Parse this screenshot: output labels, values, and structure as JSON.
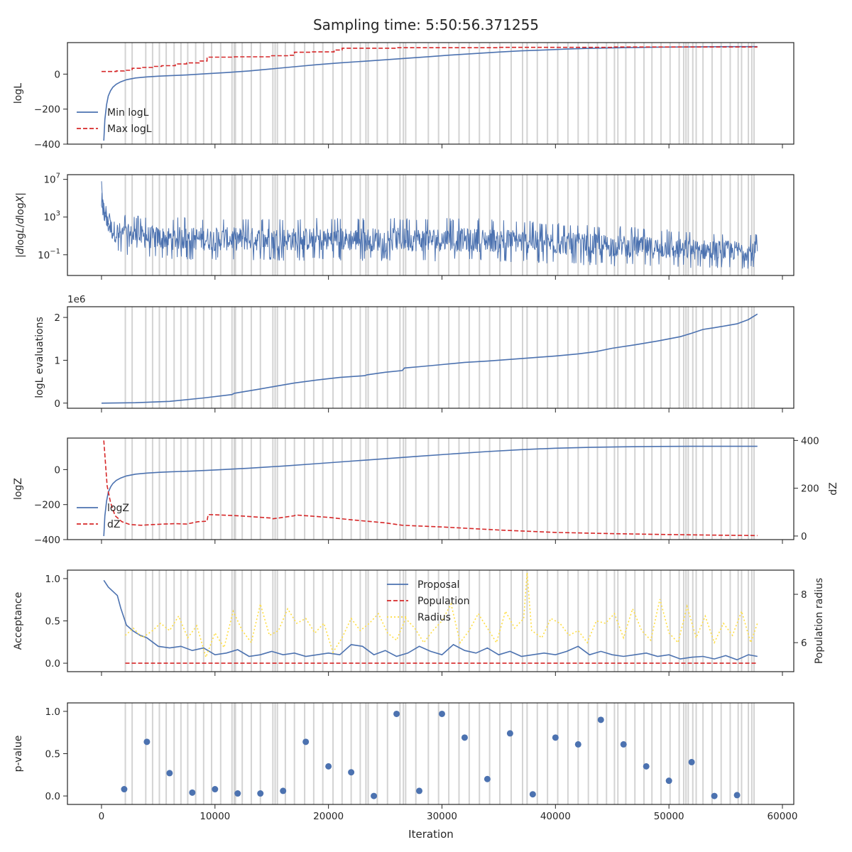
{
  "figure": {
    "title": "Sampling time: 5:50:56.371255",
    "xlabel": "Iteration",
    "xlim": [
      -3000,
      61000
    ],
    "xticks": [
      0,
      10000,
      20000,
      30000,
      40000,
      50000,
      60000
    ],
    "colors": {
      "blue": "#4c72b0",
      "red": "#d62728",
      "yellow": "#ffdd40",
      "grey": "#d3d3d3",
      "axis": "#262626"
    }
  },
  "insertion_iterations": [
    2100,
    2700,
    3900,
    4500,
    5100,
    5700,
    6400,
    7000,
    7600,
    8300,
    9000,
    9700,
    10500,
    11500,
    11700,
    11800,
    12400,
    13200,
    14000,
    15100,
    15300,
    15500,
    16200,
    17000,
    17900,
    18700,
    19500,
    20400,
    21200,
    22000,
    22800,
    23300,
    23500,
    24300,
    25200,
    26300,
    26600,
    26800,
    27700,
    28800,
    29700,
    30600,
    31500,
    32400,
    33300,
    34200,
    35100,
    36100,
    37100,
    37500,
    38400,
    39300,
    40200,
    41100,
    42000,
    42900,
    43700,
    44500,
    45200,
    45500,
    46200,
    47000,
    47800,
    48500,
    49300,
    50100,
    50900,
    51300,
    51500,
    51700,
    52100,
    52400,
    53000,
    53800,
    54600,
    55400,
    56100,
    56400,
    57000,
    57300,
    57500
  ],
  "chart_data": [
    {
      "type": "line",
      "ylabel": "logL",
      "ylim": [
        -400,
        180
      ],
      "yticks": [
        -400,
        -200,
        0
      ],
      "legend": "lower-left",
      "series": [
        {
          "name": "Min logL",
          "style": "solid",
          "color": "#4c72b0",
          "x": [
            200,
            300,
            450,
            600,
            800,
            1000,
            1300,
            1700,
            2200,
            3000,
            4000,
            5000,
            6000,
            7500,
            9000,
            11000,
            13000,
            15000,
            17000,
            19000,
            21000,
            23000,
            25000,
            27000,
            29000,
            31000,
            33000,
            35000,
            37000,
            39000,
            41000,
            43000,
            45000,
            47000,
            49000,
            51000,
            53000,
            55000,
            57000,
            57800
          ],
          "y": [
            -380,
            -260,
            -175,
            -125,
            -95,
            -75,
            -58,
            -44,
            -32,
            -22,
            -16,
            -12,
            -9,
            -5,
            1,
            9,
            18,
            30,
            42,
            54,
            64,
            73,
            82,
            91,
            100,
            110,
            118,
            126,
            133,
            138,
            143,
            147,
            150,
            152,
            154,
            155,
            156,
            157,
            157,
            157
          ]
        },
        {
          "name": "Max logL",
          "style": "dashed",
          "color": "#d62728",
          "x": [
            0,
            1300,
            1300,
            2000,
            2000,
            2700,
            2700,
            3500,
            3500,
            4500,
            4500,
            5300,
            5300,
            6500,
            6500,
            7500,
            7500,
            8600,
            8600,
            9300,
            9300,
            11700,
            11700,
            14800,
            14800,
            16500,
            16500,
            17000,
            17000,
            18500,
            18500,
            20500,
            20500,
            21200,
            21200,
            26000,
            26000,
            35000,
            35000,
            45000,
            45000,
            57800
          ],
          "y": [
            15,
            15,
            18,
            18,
            22,
            22,
            33,
            33,
            38,
            38,
            44,
            44,
            48,
            48,
            58,
            58,
            64,
            64,
            75,
            75,
            97,
            97,
            99,
            99,
            105,
            105,
            108,
            108,
            125,
            125,
            127,
            127,
            138,
            138,
            148,
            148,
            151,
            151,
            153,
            153,
            155,
            155
          ]
        }
      ]
    },
    {
      "type": "line",
      "ylabel": "|dlogL/dlogX|",
      "scale": "log",
      "ylim_log10": [
        -3.2,
        7.5
      ],
      "yticks": [
        "10^7",
        "10^3",
        "10^-1"
      ],
      "note": "noisy band between the envelopes below",
      "series": [
        {
          "name": "",
          "style": "band",
          "color": "#4c72b0",
          "envelope_x": [
            0,
            400,
            1000,
            2000,
            3500,
            6000,
            10000,
            20000,
            30000,
            36000,
            40000,
            45000,
            50000,
            55000,
            57800
          ],
          "upper_log10": [
            6.8,
            4.3,
            3.6,
            3.3,
            3.1,
            3.0,
            2.95,
            2.9,
            2.9,
            2.8,
            2.4,
            2.1,
            1.7,
            1.4,
            1.3
          ],
          "lower_log10": [
            2.5,
            0.7,
            -0.5,
            -1.1,
            -1.3,
            -1.5,
            -1.6,
            -1.65,
            -1.7,
            -1.8,
            -2.0,
            -2.2,
            -2.4,
            -2.5,
            -2.5
          ]
        }
      ]
    },
    {
      "type": "line",
      "ylabel": "logL evaluations",
      "offset_label": "1e6",
      "ylim": [
        -0.12,
        2.25
      ],
      "yticks": [
        0,
        1,
        2
      ],
      "series": [
        {
          "name": "",
          "style": "solid",
          "color": "#4c72b0",
          "x": [
            0,
            3000,
            6000,
            9000,
            11500,
            11700,
            14000,
            15500,
            17000,
            19000,
            21000,
            23200,
            23400,
            25000,
            26500,
            26700,
            28000,
            30000,
            32000,
            34000,
            36000,
            38000,
            40000,
            42000,
            43500,
            45000,
            47000,
            49000,
            51000,
            52000,
            53000,
            54000,
            56000,
            57000,
            57800
          ],
          "y": [
            0.0,
            0.01,
            0.04,
            0.12,
            0.2,
            0.23,
            0.33,
            0.4,
            0.47,
            0.54,
            0.6,
            0.64,
            0.66,
            0.72,
            0.76,
            0.82,
            0.85,
            0.9,
            0.95,
            0.98,
            1.02,
            1.06,
            1.1,
            1.15,
            1.2,
            1.28,
            1.36,
            1.45,
            1.55,
            1.63,
            1.72,
            1.76,
            1.85,
            1.95,
            2.08
          ]
        }
      ]
    },
    {
      "type": "line",
      "ylabel": "logZ",
      "ylim": [
        -400,
        180
      ],
      "yticks": [
        -400,
        -200,
        0
      ],
      "y2label": "dZ",
      "y2lim": [
        -15,
        410
      ],
      "y2ticks": [
        0,
        200,
        400
      ],
      "legend": "lower-left",
      "series": [
        {
          "name": "logZ",
          "style": "solid",
          "color": "#4c72b0",
          "axis": "left",
          "x": [
            200,
            300,
            450,
            600,
            800,
            1000,
            1300,
            1700,
            2200,
            3000,
            4000,
            5000,
            6000,
            8000,
            10000,
            13000,
            16000,
            19000,
            22000,
            25000,
            28000,
            31000,
            34000,
            37000,
            40000,
            43000,
            46000,
            49000,
            52000,
            55000,
            57800
          ],
          "y": [
            -380,
            -265,
            -180,
            -130,
            -100,
            -80,
            -62,
            -48,
            -36,
            -26,
            -20,
            -16,
            -13,
            -8,
            -2,
            8,
            20,
            34,
            48,
            62,
            76,
            90,
            103,
            114,
            122,
            127,
            130,
            132,
            133,
            133,
            133
          ]
        },
        {
          "name": "dZ",
          "style": "dashed",
          "color": "#d62728",
          "axis": "right",
          "x": [
            200,
            500,
            800,
            1200,
            1800,
            2500,
            3500,
            4500,
            5500,
            6500,
            7500,
            8500,
            9300,
            9400,
            12000,
            15000,
            15100,
            17000,
            17100,
            20000,
            22000,
            25000,
            26500,
            30000,
            35000,
            40000,
            45000,
            50000,
            55000,
            57800
          ],
          "y": [
            400,
            210,
            140,
            85,
            60,
            48,
            45,
            48,
            50,
            52,
            50,
            60,
            62,
            90,
            85,
            75,
            72,
            85,
            88,
            78,
            68,
            55,
            45,
            38,
            25,
            15,
            10,
            6,
            3,
            2
          ]
        }
      ]
    },
    {
      "type": "line",
      "ylabel": "Acceptance",
      "ylim": [
        -0.1,
        1.1
      ],
      "yticks": [
        0.0,
        0.5,
        1.0
      ],
      "y2label": "Population radius",
      "y2lim": [
        4.8,
        9.0
      ],
      "y2ticks": [
        6,
        8
      ],
      "legend": "top-center",
      "series": [
        {
          "name": "Proposal",
          "style": "solid",
          "color": "#4c72b0",
          "axis": "left",
          "x": [
            200,
            600,
            1000,
            1400,
            1700,
            2200,
            2800,
            3400,
            4000,
            4500,
            5000,
            6000,
            7000,
            8000,
            9000,
            10000,
            11000,
            12000,
            13000,
            14000,
            15000,
            16000,
            17000,
            18000,
            19000,
            20000,
            21000,
            22000,
            23000,
            24000,
            25000,
            26000,
            27000,
            28000,
            29000,
            30000,
            31000,
            32000,
            33000,
            34000,
            35000,
            36000,
            37000,
            38000,
            39000,
            40000,
            41000,
            42000,
            43000,
            44000,
            45000,
            46000,
            47000,
            48000,
            49000,
            50000,
            51000,
            52000,
            53000,
            54000,
            55000,
            56000,
            57000,
            57800
          ],
          "y": [
            0.98,
            0.9,
            0.85,
            0.8,
            0.65,
            0.45,
            0.38,
            0.33,
            0.3,
            0.25,
            0.2,
            0.18,
            0.2,
            0.15,
            0.18,
            0.1,
            0.12,
            0.16,
            0.08,
            0.1,
            0.14,
            0.1,
            0.12,
            0.08,
            0.1,
            0.12,
            0.1,
            0.22,
            0.2,
            0.1,
            0.15,
            0.08,
            0.12,
            0.2,
            0.14,
            0.1,
            0.22,
            0.15,
            0.12,
            0.18,
            0.1,
            0.14,
            0.08,
            0.1,
            0.12,
            0.1,
            0.14,
            0.2,
            0.1,
            0.14,
            0.1,
            0.08,
            0.1,
            0.12,
            0.08,
            0.1,
            0.05,
            0.07,
            0.08,
            0.05,
            0.09,
            0.04,
            0.1,
            0.08
          ]
        },
        {
          "name": "Population",
          "style": "dashed",
          "color": "#d62728",
          "axis": "left",
          "x": [
            2100,
            57800
          ],
          "y": [
            0.0,
            0.0
          ]
        },
        {
          "name": "Radius",
          "style": "dotted",
          "color": "#ffdd40",
          "axis": "right",
          "x": [
            2100,
            2800,
            3600,
            4500,
            5200,
            6000,
            6800,
            7600,
            8400,
            9200,
            10000,
            10800,
            11600,
            12400,
            13200,
            14000,
            14800,
            15600,
            16400,
            17200,
            18000,
            18800,
            19600,
            20400,
            21200,
            22000,
            22800,
            23600,
            24400,
            25200,
            26000,
            26800,
            27600,
            28400,
            29200,
            30000,
            30800,
            31600,
            32400,
            33200,
            34000,
            34800,
            35600,
            36400,
            37200,
            37500,
            37900,
            38800,
            39600,
            40400,
            41200,
            42000,
            42800,
            43600,
            44400,
            45200,
            46000,
            46800,
            47600,
            48400,
            49200,
            50000,
            50800,
            51600,
            52400,
            53200,
            54000,
            54800,
            55600,
            56400,
            57200,
            57800
          ],
          "y": [
            6.3,
            6.6,
            6.2,
            6.5,
            6.8,
            6.5,
            7.1,
            6.2,
            6.7,
            5.4,
            6.4,
            5.8,
            7.3,
            6.5,
            6.0,
            7.6,
            6.3,
            6.5,
            7.4,
            6.8,
            7.0,
            6.4,
            6.8,
            5.6,
            6.2,
            7.0,
            6.5,
            6.8,
            7.2,
            6.4,
            6.1,
            7.0,
            6.6,
            6.0,
            6.5,
            6.9,
            7.6,
            6.0,
            6.5,
            7.2,
            6.6,
            6.0,
            7.3,
            6.6,
            7.0,
            8.9,
            6.5,
            6.2,
            7.0,
            6.8,
            6.3,
            6.5,
            6.0,
            6.9,
            6.8,
            7.2,
            6.2,
            7.4,
            6.5,
            6.1,
            7.8,
            6.4,
            6.0,
            7.5,
            6.2,
            7.1,
            6.0,
            6.8,
            6.3,
            7.3,
            6.0,
            6.8
          ]
        }
      ]
    },
    {
      "type": "scatter",
      "ylabel": "p-value",
      "ylim": [
        -0.1,
        1.1
      ],
      "yticks": [
        0.0,
        0.5,
        1.0
      ],
      "series": [
        {
          "name": "",
          "color": "#4c72b0",
          "x": [
            2000,
            4000,
            6000,
            8000,
            10000,
            12000,
            14000,
            16000,
            18000,
            20000,
            22000,
            24000,
            26000,
            28000,
            30000,
            32000,
            34000,
            36000,
            38000,
            40000,
            42000,
            44000,
            46000,
            48000,
            50000,
            52000,
            54000,
            56000
          ],
          "y": [
            0.08,
            0.64,
            0.27,
            0.04,
            0.08,
            0.03,
            0.03,
            0.06,
            0.64,
            0.35,
            0.28,
            0.0,
            0.97,
            0.06,
            0.97,
            0.69,
            0.2,
            0.74,
            0.02,
            0.69,
            0.61,
            0.9,
            0.61,
            0.35,
            0.18,
            0.4,
            0.0,
            0.01
          ]
        }
      ]
    }
  ]
}
